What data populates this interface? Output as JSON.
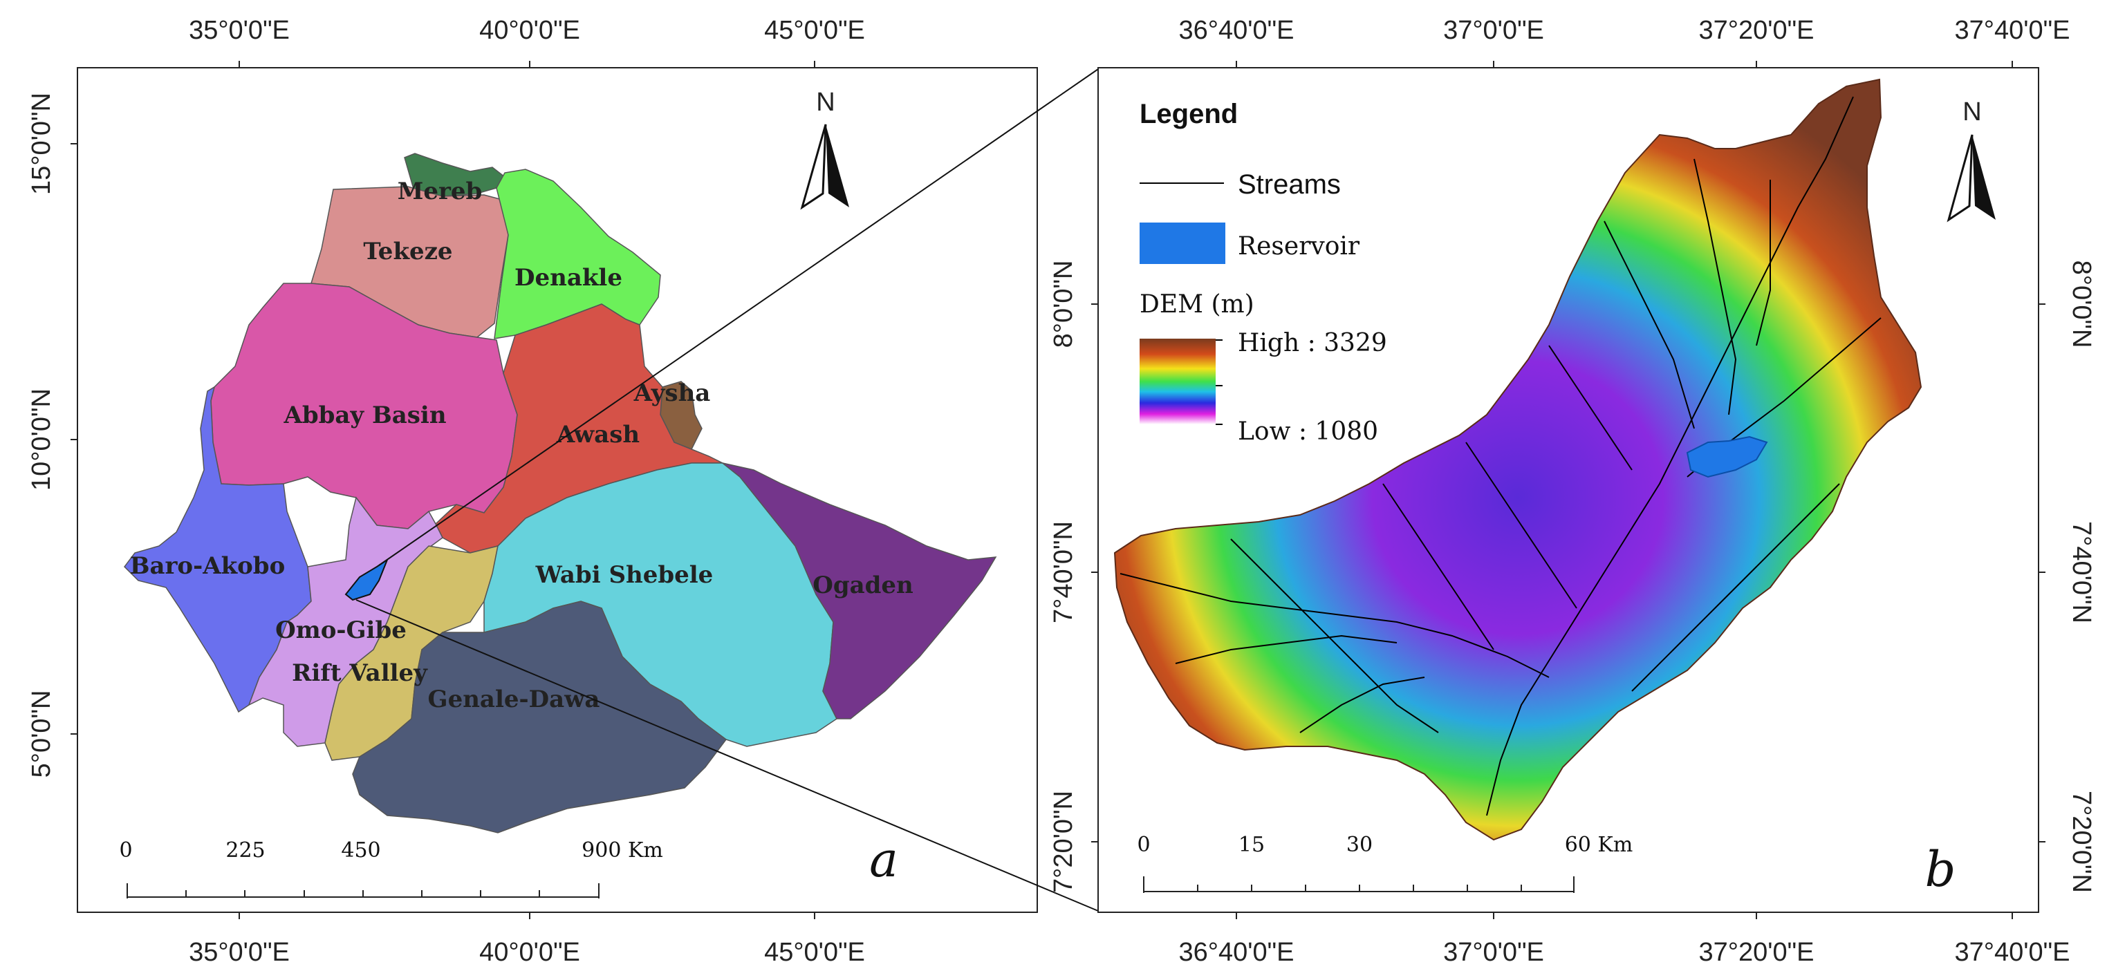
{
  "panel_a": {
    "letter": "a",
    "north": "N",
    "x_ticks": [
      "35°0'0\"E",
      "40°0'0\"E",
      "45°0'0\"E"
    ],
    "y_ticks": [
      "15°0'0\"N",
      "10°0'0\"N",
      "5°0'0\"N"
    ],
    "scale_labels": [
      "0",
      "225",
      "450",
      "900 Km"
    ],
    "basins": [
      {
        "name": "Mereb",
        "color": "#3f7f4f"
      },
      {
        "name": "Tekeze",
        "color": "#d99090"
      },
      {
        "name": "Denakle",
        "color": "#6cf05a"
      },
      {
        "name": "Abbay Basin",
        "color": "#d957a8"
      },
      {
        "name": "Aysha",
        "color": "#8a6040"
      },
      {
        "name": "Awash",
        "color": "#d55248"
      },
      {
        "name": "Baro-Akobo",
        "color": "#6a70ee"
      },
      {
        "name": "Omo-Gibe",
        "color": "#cf9be8"
      },
      {
        "name": "Rift Valley",
        "color": "#d2c06a"
      },
      {
        "name": "Wabi Shebele",
        "color": "#66d2dc"
      },
      {
        "name": "Ogaden",
        "color": "#74358b"
      },
      {
        "name": "Genale-Dawa",
        "color": "#4e5a78"
      }
    ]
  },
  "panel_b": {
    "letter": "b",
    "north": "N",
    "x_ticks": [
      "36°40'0\"E",
      "37°0'0\"E",
      "37°20'0\"E",
      "37°40'0\"E"
    ],
    "y_ticks": [
      "8°0'0\"N",
      "7°40'0\"N",
      "7°20'0\"N"
    ],
    "scale_labels": [
      "0",
      "15",
      "30",
      "60 Km"
    ],
    "legend": {
      "title": "Legend",
      "streams": "Streams",
      "reservoir": "Reservoir",
      "dem_title": "DEM (m)",
      "high": "High : 3329",
      "low": "Low : 1080"
    },
    "colors": {
      "reservoir": "#1f78e6",
      "stream": "#000000"
    }
  }
}
